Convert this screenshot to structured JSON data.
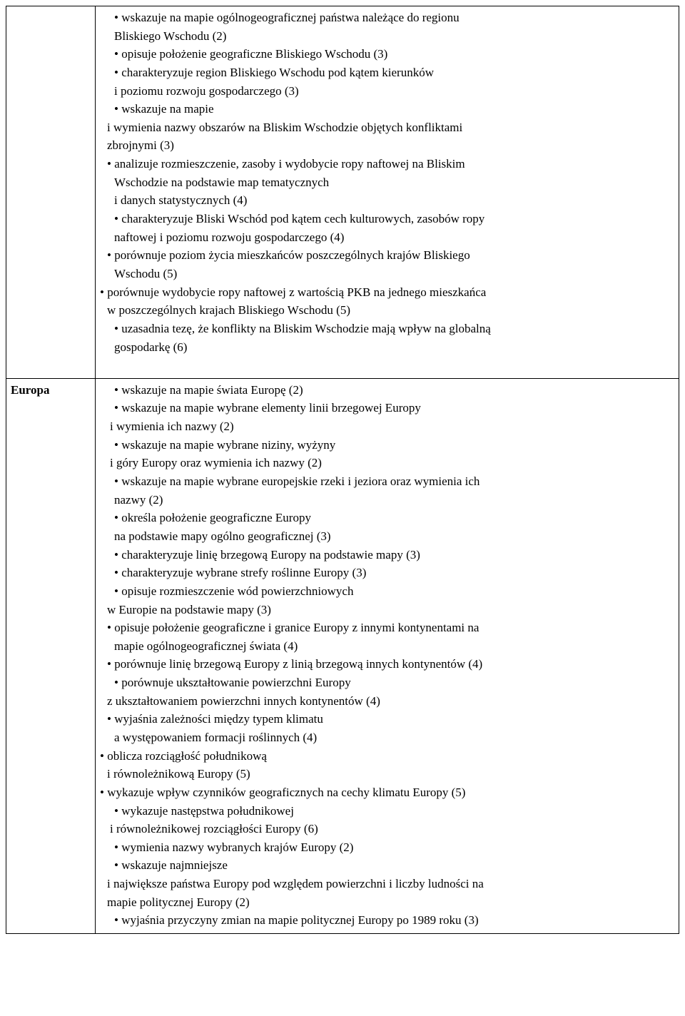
{
  "rows": [
    {
      "header": "",
      "items": [
        {
          "kind": "bullet",
          "indent": "indent-2",
          "text": "wskazuje na mapie ogólnogeograficznej państwa należące do regionu",
          "cont": [
            "Bliskiego Wschodu (2)"
          ],
          "contIndent": "indent-2"
        },
        {
          "kind": "bullet",
          "indent": "indent-2",
          "text": "opisuje położenie geograficzne Bliskiego Wschodu  (3)"
        },
        {
          "kind": "bullet",
          "indent": "indent-2",
          "text": "charakteryzuje region Bliskiego Wschodu pod kątem kierunków",
          "cont": [
            "i poziomu rozwoju gospodarczego (3)"
          ],
          "contIndent": "indent-2"
        },
        {
          "kind": "bullet",
          "indent": "indent-2",
          "text": "wskazuje na mapie",
          "cont": [
            "i wymienia nazwy obszarów na Bliskim Wschodzie objętych konfliktami",
            "zbrojnymi (3)"
          ],
          "contIndent": "indent-1",
          "contIndent2": ""
        },
        {
          "kind": "bullet",
          "indent": "indent-1",
          "text": "analizuje rozmieszczenie, zasoby i wydobycie ropy naftowej na Bliskim",
          "cont": [
            "Wschodzie na podstawie map tematycznych",
            "i danych statystycznych (4)"
          ],
          "contIndent": "indent-2"
        },
        {
          "kind": "bullet",
          "indent": "indent-2",
          "text": "charakteryzuje Bliski Wschód pod kątem cech kulturowych, zasobów ropy",
          "cont": [
            "naftowej i poziomu rozwoju gospodarczego (4)"
          ],
          "contIndent": "indent-2"
        },
        {
          "kind": "bullet",
          "indent": "indent-1",
          "text": "porównuje poziom życia mieszkańców poszczególnych krajów Bliskiego",
          "cont": [
            "Wschodu (5)"
          ],
          "contIndent": "indent-2"
        },
        {
          "kind": "bullet",
          "indent": "",
          "text": "porównuje wydobycie ropy naftowej z wartością PKB na jednego mieszkańca",
          "cont": [
            "w poszczególnych krajach Bliskiego Wschodu (5)"
          ],
          "contIndent": "indent-1"
        },
        {
          "kind": "bullet",
          "indent": "indent-2",
          "text": "uzasadnia tezę, że konflikty na Bliskim Wschodzie mają wpływ na globalną",
          "cont": [
            "gospodarkę (6)"
          ],
          "contIndent": "indent-2"
        },
        {
          "kind": "spacer"
        }
      ]
    },
    {
      "header": "Europa",
      "items": [
        {
          "kind": "bullet",
          "indent": "indent-2",
          "text": "wskazuje na mapie świata Europę (2)"
        },
        {
          "kind": "bullet",
          "indent": "indent-2",
          "text": "wskazuje na mapie wybrane elementy linii brzegowej Europy",
          "cont": [
            "i wymienia ich nazwy (2)"
          ],
          "contIndent": "indent-3"
        },
        {
          "kind": "bullet",
          "indent": "indent-2",
          "text": "wskazuje na mapie wybrane niziny, wyżyny",
          "cont": [
            "i góry Europy oraz wymienia ich nazwy (2)"
          ],
          "contIndent": "indent-3"
        },
        {
          "kind": "bullet",
          "indent": "indent-2",
          "text": "wskazuje na mapie wybrane europejskie rzeki i jeziora oraz wymienia ich",
          "cont": [
            "nazwy (2)"
          ],
          "contIndent": "indent-2"
        },
        {
          "kind": "bullet",
          "indent": "indent-2",
          "text": "określa położenie geograficzne Europy",
          "cont": [
            "na podstawie mapy ogólno geograficznej (3)"
          ],
          "contIndent": "indent-2"
        },
        {
          "kind": "bullet",
          "indent": "indent-2",
          "text": "charakteryzuje linię brzegową Europy na podstawie mapy (3)"
        },
        {
          "kind": "bullet",
          "indent": "indent-2",
          "text": "charakteryzuje wybrane strefy roślinne Europy (3)"
        },
        {
          "kind": "bullet",
          "indent": "indent-2",
          "text": "opisuje rozmieszczenie wód powierzchniowych",
          "cont": [
            "w Europie na podstawie mapy (3)"
          ],
          "contIndent": "indent-1"
        },
        {
          "kind": "bullet",
          "indent": "indent-1",
          "text": "opisuje położenie geograficzne i granice Europy z innymi kontynentami na",
          "cont": [
            "mapie ogólnogeograficznej świata (4)"
          ],
          "contIndent": "indent-2"
        },
        {
          "kind": "bullet",
          "indent": "indent-1",
          "text": "porównuje linię brzegową Europy z linią brzegową innych kontynentów (4)"
        },
        {
          "kind": "bullet",
          "indent": "indent-2",
          "text": "porównuje ukształtowanie powierzchni Europy",
          "cont": [
            "z ukształtowaniem powierzchni innych kontynentów (4)"
          ],
          "contIndent": "indent-1"
        },
        {
          "kind": "bullet",
          "indent": "indent-1",
          "text": "wyjaśnia zależności między typem klimatu",
          "cont": [
            "a występowaniem formacji roślinnych (4)"
          ],
          "contIndent": "indent-2"
        },
        {
          "kind": "bullet",
          "indent": "",
          "text": "oblicza rozciągłość południkową",
          "cont": [
            "i równoleżnikową Europy (5)"
          ],
          "contIndent": "indent-1"
        },
        {
          "kind": "bullet",
          "indent": "",
          "text": "wykazuje wpływ czynników geograficznych na cechy klimatu Europy (5)"
        },
        {
          "kind": "bullet",
          "indent": "indent-2",
          "text": "wykazuje następstwa południkowej",
          "cont": [
            "i równoleżnikowej rozciągłości Europy (6)"
          ],
          "contIndent": "indent-3"
        },
        {
          "kind": "bullet",
          "indent": "indent-2",
          "text": "wymienia nazwy wybranych krajów Europy (2)"
        },
        {
          "kind": "bullet",
          "indent": "indent-2",
          "text": "wskazuje najmniejsze",
          "cont": [
            "i największe państwa Europy pod względem powierzchni i liczby ludności na",
            "mapie politycznej Europy (2)"
          ],
          "contIndent": "indent-1"
        },
        {
          "kind": "bullet",
          "indent": "indent-2",
          "text": "wyjaśnia przyczyny zmian na mapie politycznej Europy po 1989 roku (3)"
        }
      ]
    }
  ]
}
